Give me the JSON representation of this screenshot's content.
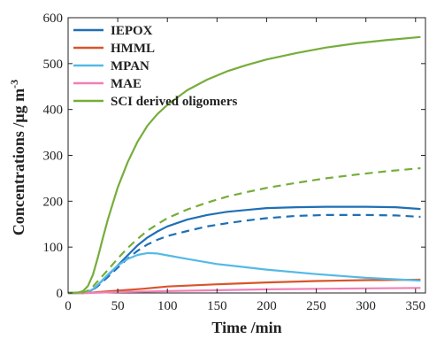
{
  "chart_data": {
    "type": "line",
    "xlabel": "Time /min",
    "ylabel": "Concentrations /μg m",
    "ylabel_unit_superscript": "-3",
    "xlim": [
      0,
      360
    ],
    "ylim": [
      0,
      600
    ],
    "xticks": [
      "0",
      "50",
      "100",
      "150",
      "200",
      "250",
      "300",
      "350"
    ],
    "yticks": [
      "0",
      "100",
      "200",
      "300",
      "400",
      "500",
      "600"
    ],
    "grid": false,
    "legend_position": "top-left",
    "series": [
      {
        "name": "IEPOX",
        "color": "#1f6fb5",
        "style": "solid",
        "points": [
          [
            0,
            0
          ],
          [
            15,
            0
          ],
          [
            20,
            2
          ],
          [
            25,
            8
          ],
          [
            30,
            18
          ],
          [
            40,
            38
          ],
          [
            50,
            60
          ],
          [
            60,
            82
          ],
          [
            70,
            104
          ],
          [
            80,
            121
          ],
          [
            90,
            134
          ],
          [
            100,
            145
          ],
          [
            120,
            160
          ],
          [
            140,
            170
          ],
          [
            160,
            177
          ],
          [
            180,
            181
          ],
          [
            200,
            185
          ],
          [
            230,
            187
          ],
          [
            260,
            188
          ],
          [
            300,
            188
          ],
          [
            330,
            187
          ],
          [
            355,
            183
          ]
        ]
      },
      {
        "name": "IEPOX",
        "color": "#1f6fb5",
        "style": "dashed",
        "points": [
          [
            0,
            0
          ],
          [
            15,
            0
          ],
          [
            20,
            2
          ],
          [
            25,
            7
          ],
          [
            30,
            15
          ],
          [
            40,
            35
          ],
          [
            50,
            55
          ],
          [
            60,
            75
          ],
          [
            70,
            92
          ],
          [
            80,
            106
          ],
          [
            90,
            116
          ],
          [
            100,
            124
          ],
          [
            120,
            135
          ],
          [
            140,
            145
          ],
          [
            160,
            152
          ],
          [
            180,
            158
          ],
          [
            200,
            163
          ],
          [
            230,
            168
          ],
          [
            260,
            170
          ],
          [
            300,
            170
          ],
          [
            330,
            169
          ],
          [
            355,
            166
          ]
        ]
      },
      {
        "name": "HMML",
        "color": "#d9542a",
        "style": "solid",
        "points": [
          [
            0,
            0
          ],
          [
            20,
            0
          ],
          [
            30,
            2
          ],
          [
            50,
            5
          ],
          [
            75,
            9
          ],
          [
            100,
            14
          ],
          [
            150,
            19
          ],
          [
            200,
            23
          ],
          [
            250,
            26
          ],
          [
            300,
            28
          ],
          [
            355,
            29
          ]
        ]
      },
      {
        "name": "MPAN",
        "color": "#55b9e6",
        "style": "solid",
        "points": [
          [
            0,
            0
          ],
          [
            15,
            0
          ],
          [
            20,
            3
          ],
          [
            25,
            8
          ],
          [
            30,
            18
          ],
          [
            40,
            40
          ],
          [
            50,
            60
          ],
          [
            60,
            74
          ],
          [
            70,
            83
          ],
          [
            80,
            87
          ],
          [
            90,
            86
          ],
          [
            100,
            82
          ],
          [
            120,
            74
          ],
          [
            150,
            63
          ],
          [
            200,
            51
          ],
          [
            250,
            41
          ],
          [
            300,
            33
          ],
          [
            355,
            27
          ]
        ]
      },
      {
        "name": "MAE",
        "color": "#f07fb8",
        "style": "solid",
        "points": [
          [
            0,
            0
          ],
          [
            20,
            0
          ],
          [
            50,
            2
          ],
          [
            100,
            4
          ],
          [
            150,
            6
          ],
          [
            200,
            8
          ],
          [
            250,
            9
          ],
          [
            300,
            10
          ],
          [
            355,
            11
          ]
        ]
      },
      {
        "name": "SCI derived oligomers",
        "color": "#76ad3a",
        "style": "solid",
        "points": [
          [
            0,
            0
          ],
          [
            10,
            1
          ],
          [
            15,
            4
          ],
          [
            20,
            15
          ],
          [
            25,
            40
          ],
          [
            30,
            78
          ],
          [
            35,
            120
          ],
          [
            40,
            160
          ],
          [
            50,
            230
          ],
          [
            60,
            285
          ],
          [
            70,
            330
          ],
          [
            80,
            365
          ],
          [
            90,
            390
          ],
          [
            100,
            410
          ],
          [
            120,
            442
          ],
          [
            140,
            465
          ],
          [
            160,
            483
          ],
          [
            180,
            497
          ],
          [
            200,
            509
          ],
          [
            230,
            523
          ],
          [
            260,
            535
          ],
          [
            290,
            544
          ],
          [
            320,
            551
          ],
          [
            355,
            558
          ]
        ]
      },
      {
        "name": "SCI derived oligomers",
        "color": "#76ad3a",
        "style": "dashed",
        "points": [
          [
            0,
            0
          ],
          [
            15,
            1
          ],
          [
            20,
            5
          ],
          [
            25,
            14
          ],
          [
            30,
            26
          ],
          [
            40,
            50
          ],
          [
            50,
            75
          ],
          [
            60,
            98
          ],
          [
            70,
            118
          ],
          [
            80,
            136
          ],
          [
            90,
            150
          ],
          [
            100,
            163
          ],
          [
            120,
            182
          ],
          [
            140,
            197
          ],
          [
            160,
            210
          ],
          [
            180,
            220
          ],
          [
            200,
            229
          ],
          [
            230,
            240
          ],
          [
            260,
            250
          ],
          [
            290,
            258
          ],
          [
            320,
            265
          ],
          [
            355,
            272
          ]
        ]
      }
    ],
    "legend": [
      {
        "label": "IEPOX",
        "color": "#1f6fb5"
      },
      {
        "label": "HMML",
        "color": "#d9542a"
      },
      {
        "label": "MPAN",
        "color": "#55b9e6"
      },
      {
        "label": "MAE",
        "color": "#f07fb8"
      },
      {
        "label": "SCI derived oligomers",
        "color": "#76ad3a"
      }
    ]
  }
}
